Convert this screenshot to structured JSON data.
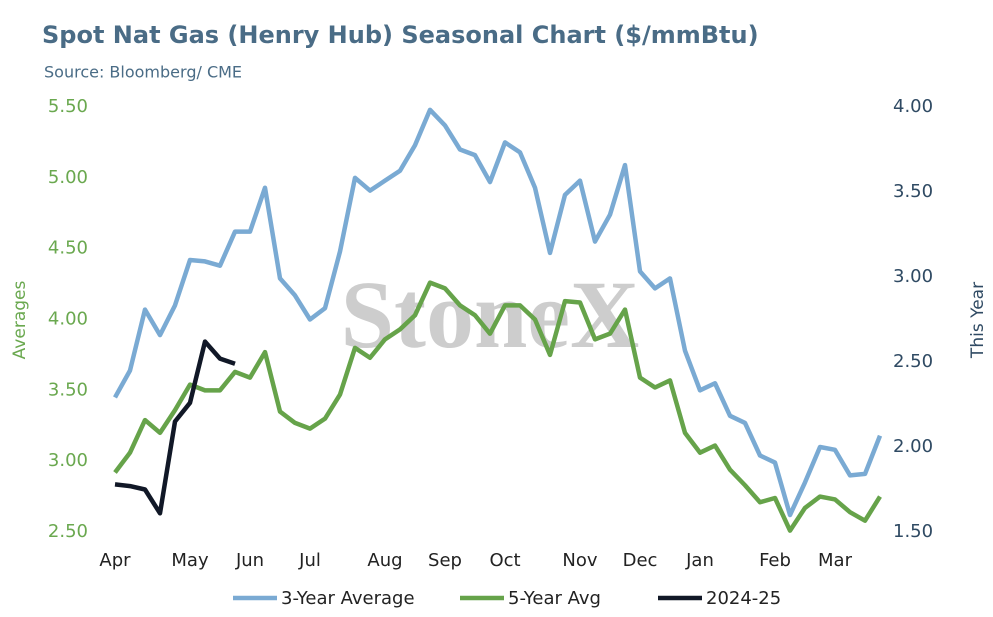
{
  "chart_data": {
    "type": "line",
    "title": "Spot Nat Gas (Henry Hub) Seasonal Chart ($/mmBtu)",
    "subtitle": "Source: Bloomberg/ CME",
    "watermark": "StoneX",
    "y_label": "Averages",
    "y2_label": "This Year",
    "categories": [
      "Apr",
      null,
      null,
      null,
      null,
      "May",
      null,
      null,
      null,
      "Jun",
      null,
      null,
      null,
      "Jul",
      null,
      null,
      null,
      null,
      "Aug",
      null,
      null,
      null,
      "Sep",
      null,
      null,
      null,
      "Oct",
      null,
      null,
      null,
      null,
      "Nov",
      null,
      null,
      null,
      "Dec",
      null,
      null,
      null,
      "Jan",
      null,
      null,
      null,
      null,
      "Feb",
      null,
      null,
      null,
      "Mar",
      null,
      null,
      null
    ],
    "series": [
      {
        "name": "3-Year Average",
        "color": "#7aaad3",
        "axis": "y",
        "values": [
          3.45,
          3.64,
          4.07,
          3.89,
          4.1,
          4.42,
          4.41,
          4.38,
          4.62,
          4.62,
          4.93,
          4.29,
          4.17,
          4.0,
          4.08,
          4.48,
          5.0,
          4.91,
          4.98,
          5.05,
          5.23,
          5.48,
          5.37,
          5.2,
          5.16,
          4.97,
          5.25,
          5.18,
          4.93,
          4.47,
          4.88,
          4.98,
          4.55,
          4.74,
          5.09,
          4.34,
          4.22,
          4.29,
          3.78,
          3.5,
          3.55,
          3.32,
          3.27,
          3.04,
          2.99,
          2.62,
          2.85,
          3.1,
          3.08,
          2.9,
          2.91,
          3.18
        ]
      },
      {
        "name": "5-Year Avg",
        "color": "#66a34a",
        "axis": "y",
        "values": [
          2.92,
          3.06,
          3.29,
          3.2,
          3.36,
          3.54,
          3.5,
          3.5,
          3.63,
          3.59,
          3.77,
          3.35,
          3.27,
          3.23,
          3.3,
          3.47,
          3.8,
          3.73,
          3.86,
          3.93,
          4.03,
          4.26,
          4.22,
          4.1,
          4.03,
          3.9,
          4.1,
          4.1,
          4.0,
          3.75,
          4.13,
          4.12,
          3.86,
          3.9,
          4.07,
          3.59,
          3.52,
          3.57,
          3.2,
          3.06,
          3.11,
          2.94,
          2.83,
          2.71,
          2.74,
          2.51,
          2.67,
          2.75,
          2.73,
          2.64,
          2.58,
          2.75
        ]
      },
      {
        "name": "2024-25",
        "color": "#111827",
        "axis": "y2",
        "values": [
          1.78,
          1.77,
          1.75,
          1.61,
          2.15,
          2.26,
          2.62,
          2.52,
          2.49,
          null,
          null,
          null,
          null,
          null,
          null,
          null,
          null,
          null,
          null,
          null,
          null,
          null,
          null,
          null,
          null,
          null,
          null,
          null,
          null,
          null,
          null,
          null,
          null,
          null,
          null,
          null,
          null,
          null,
          null,
          null,
          null,
          null,
          null,
          null,
          null,
          null,
          null,
          null,
          null,
          null,
          null,
          null
        ]
      }
    ],
    "ylim": [
      2.5,
      5.5
    ],
    "yticks": [
      {
        "value": 2.5,
        "label": "2.50"
      },
      {
        "value": 3,
        "label": "3.00"
      },
      {
        "value": 3.5,
        "label": "3.50"
      },
      {
        "value": 4,
        "label": "4.00"
      },
      {
        "value": 4.5,
        "label": "4.50"
      },
      {
        "value": 5,
        "label": "5.00"
      },
      {
        "value": 5.5,
        "label": "5.50"
      }
    ],
    "y2lim": [
      1.5,
      4
    ],
    "y2ticks": [
      {
        "value": 1.5,
        "label": "1.50"
      },
      {
        "value": 2,
        "label": "2.00"
      },
      {
        "value": 2.5,
        "label": "2.50"
      },
      {
        "value": 3,
        "label": "3.00"
      },
      {
        "value": 3.5,
        "label": "3.50"
      },
      {
        "value": 4,
        "label": "4.00"
      }
    ],
    "y_color": "#6aa84f",
    "y2_color": "#2f4a63",
    "grid": false,
    "legend": "bottom"
  }
}
